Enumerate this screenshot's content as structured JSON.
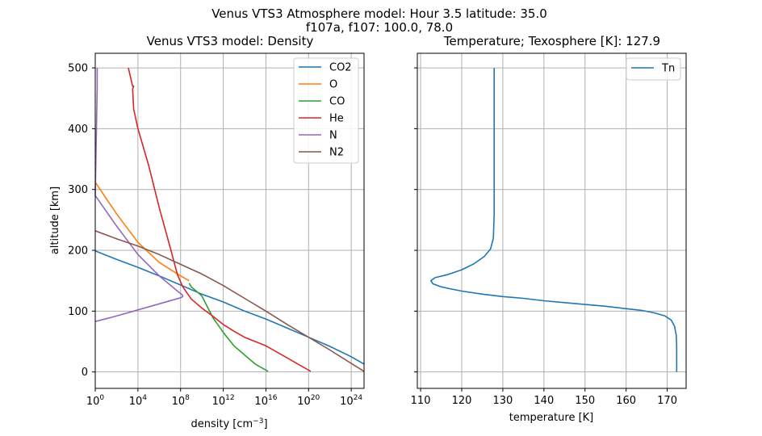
{
  "figure": {
    "suptitle_line1": "Venus VTS3 Atmosphere model: Hour 3.5 latitude: 35.0",
    "suptitle_line2": "f107a, f107: 100.0, 78.0"
  },
  "chart_data": [
    {
      "type": "line",
      "title": "Venus VTS3 model: Density",
      "xlabel": "density [cm",
      "xlabel_sup": "−3",
      "xlabel_end": "]",
      "ylabel": "altitude [km]",
      "xscale": "log",
      "xlim_log10": [
        0,
        25.2
      ],
      "ylim": [
        -27,
        524
      ],
      "xticks": [
        {
          "exp": 0,
          "base": "10",
          "sup": "0"
        },
        {
          "exp": 4,
          "base": "10",
          "sup": "4"
        },
        {
          "exp": 8,
          "base": "10",
          "sup": "8"
        },
        {
          "exp": 12,
          "base": "10",
          "sup": "12"
        },
        {
          "exp": 16,
          "base": "10",
          "sup": "16"
        },
        {
          "exp": 20,
          "base": "10",
          "sup": "20"
        },
        {
          "exp": 24,
          "base": "10",
          "sup": "24"
        }
      ],
      "yticks": [
        0,
        100,
        200,
        300,
        400,
        500
      ],
      "grid": true,
      "legend_position": "top-right",
      "series": [
        {
          "name": "CO2",
          "color": "#1f77b4",
          "points": [
            [
              25.2,
              13
            ],
            [
              24,
              25
            ],
            [
              22,
              42
            ],
            [
              20,
              57
            ],
            [
              18,
              72
            ],
            [
              16,
              87
            ],
            [
              14,
              100
            ],
            [
              12,
              115
            ],
            [
              10,
              128
            ],
            [
              8,
              143
            ],
            [
              6,
              158
            ],
            [
              4,
              172
            ],
            [
              2,
              185
            ],
            [
              0,
              199
            ]
          ]
        },
        {
          "name": "O",
          "color": "#ff7f0e",
          "points": [
            [
              8.8,
              150
            ],
            [
              8,
              158
            ],
            [
              6,
              180
            ],
            [
              4,
              213
            ],
            [
              2,
              260
            ],
            [
              0,
              312
            ]
          ]
        },
        {
          "name": "CO",
          "color": "#2ca02c",
          "points": [
            [
              16.2,
              1
            ],
            [
              15,
              13
            ],
            [
              14,
              28
            ],
            [
              13,
              43
            ],
            [
              12,
              65
            ],
            [
              11,
              90
            ],
            [
              10,
              125
            ],
            [
              9,
              140
            ],
            [
              8.8,
              146
            ]
          ]
        },
        {
          "name": "He",
          "color": "#d62728",
          "points": [
            [
              20.2,
              1
            ],
            [
              19,
              13
            ],
            [
              18,
              23
            ],
            [
              17,
              33
            ],
            [
              16,
              43
            ],
            [
              14,
              57
            ],
            [
              13,
              67
            ],
            [
              12,
              78
            ],
            [
              11.5,
              85
            ],
            [
              11,
              92
            ],
            [
              10,
              105
            ],
            [
              9,
              120
            ],
            [
              8.2,
              140
            ],
            [
              7.7,
              160
            ],
            [
              7.1,
              200
            ],
            [
              6,
              270
            ],
            [
              5,
              340
            ],
            [
              4,
              400
            ],
            [
              3.6,
              432
            ],
            [
              3.5,
              465
            ],
            [
              3.6,
              470
            ],
            [
              3.5,
              470
            ],
            [
              3.1,
              500
            ]
          ]
        },
        {
          "name": "N",
          "color": "#9467bd",
          "points": [
            [
              0,
              83
            ],
            [
              2,
              92
            ],
            [
              4,
              102
            ],
            [
              6,
              112
            ],
            [
              8,
              122
            ],
            [
              8.2,
              124
            ],
            [
              8.2,
              126
            ],
            [
              7.5,
              136
            ],
            [
              6,
              158
            ],
            [
              4,
              193
            ],
            [
              2,
              240
            ],
            [
              0,
              290
            ],
            [
              0.18,
              467
            ],
            [
              0.18,
              500
            ]
          ]
        },
        {
          "name": "N2",
          "color": "#8c564b",
          "points": [
            [
              25.2,
              1
            ],
            [
              24,
              14
            ],
            [
              22,
              36
            ],
            [
              20,
              57
            ],
            [
              18,
              78
            ],
            [
              16,
              100
            ],
            [
              14,
              121
            ],
            [
              12,
              142
            ],
            [
              10,
              161
            ],
            [
              8,
              177
            ],
            [
              6,
              193
            ],
            [
              4,
              207
            ],
            [
              2,
              219
            ],
            [
              0,
              232
            ]
          ]
        }
      ]
    },
    {
      "type": "line",
      "title": "Temperature;  Texosphere [K]: 127.9",
      "xlabel": "temperature [K]",
      "ylabel": "",
      "xlim": [
        109.2,
        174.6
      ],
      "ylim": [
        -27,
        524
      ],
      "xticks": [
        110,
        120,
        130,
        140,
        150,
        160,
        170
      ],
      "yticks": [
        0,
        100,
        200,
        300,
        400,
        500
      ],
      "grid": true,
      "legend_position": "top-right",
      "series": [
        {
          "name": "Tn",
          "color": "#1f77b4",
          "points": [
            [
              172.3,
              0
            ],
            [
              172.3,
              40
            ],
            [
              172.2,
              60
            ],
            [
              171.8,
              75
            ],
            [
              171,
              85
            ],
            [
              169.5,
              92
            ],
            [
              167,
              97
            ],
            [
              164,
              101
            ],
            [
              160,
              104
            ],
            [
              155,
              108
            ],
            [
              150,
              111
            ],
            [
              145,
              114
            ],
            [
              140,
              117
            ],
            [
              135,
              121
            ],
            [
              130,
              124
            ],
            [
              125,
              128
            ],
            [
              120,
              133
            ],
            [
              117,
              137
            ],
            [
              115,
              140
            ],
            [
              113,
              145
            ],
            [
              112.5,
              150
            ],
            [
              113.5,
              155
            ],
            [
              116.5,
              160
            ],
            [
              120,
              168
            ],
            [
              123,
              178
            ],
            [
              125.5,
              190
            ],
            [
              127,
              202
            ],
            [
              127.7,
              220
            ],
            [
              127.9,
              260
            ],
            [
              127.9,
              500
            ]
          ]
        }
      ]
    }
  ]
}
